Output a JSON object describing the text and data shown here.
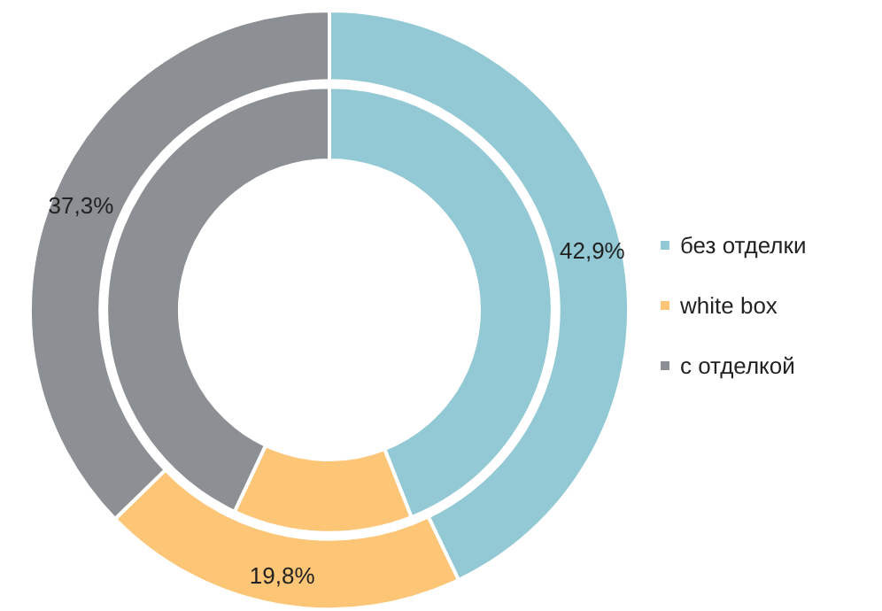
{
  "chart_data": {
    "type": "donut",
    "categories": [
      "без отделки",
      "white box",
      "с отделкой"
    ],
    "colors": [
      "#92c9d5",
      "#fdc576",
      "#8c9094"
    ],
    "legend": "right",
    "series": [
      {
        "values": [
          42.9,
          19.8,
          37.3
        ],
        "value_labels": [
          "42,9%",
          "19,8%",
          "37,3%"
        ]
      },
      {
        "values": [
          44,
          13,
          43
        ]
      }
    ]
  }
}
